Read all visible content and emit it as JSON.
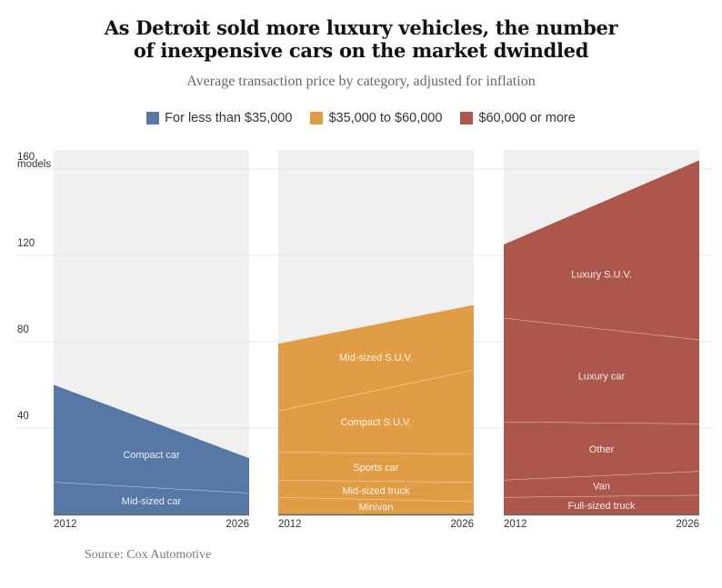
{
  "title_line1": "As Detroit sold more luxury vehicles, the number",
  "title_line2": "of inexpensive cars on the market dwindled",
  "subtitle": "Average transaction price by category, adjusted for inflation",
  "source": "Source: Cox Automotive",
  "legend": [
    {
      "label": "For less than $35,000",
      "color": "#5778a4"
    },
    {
      "label": "$35,000 to $60,000",
      "color": "#e09d45"
    },
    {
      "label": "$60,000 or more",
      "color": "#ad574c"
    }
  ],
  "chart_data": {
    "type": "area",
    "title": "As Detroit sold more luxury vehicles, the number of inexpensive cars on the market dwindled",
    "subtitle": "Average transaction price by category, adjusted for inflation",
    "ylabel": "models",
    "ylim": [
      0,
      170
    ],
    "yticks": [
      40,
      80,
      120,
      160
    ],
    "ytick_labels": [
      "40",
      "80",
      "120",
      "160"
    ],
    "y_unit_label": "models",
    "grid": true,
    "legend_position": "top-center",
    "x": [
      2012,
      2026
    ],
    "x_tick_labels": [
      "2012",
      "2026"
    ],
    "stacked": true,
    "panels": [
      {
        "name": "For less than $35,000",
        "color": "#5778a4",
        "series": [
          {
            "name": "Mid-sized car",
            "values": [
              15,
              10
            ]
          },
          {
            "name": "Compact car",
            "values": [
              45,
              16
            ]
          }
        ],
        "totals": [
          60,
          26
        ]
      },
      {
        "name": "$35,000 to $60,000",
        "color": "#e09d45",
        "series": [
          {
            "name": "Minivan",
            "values": [
              8,
              6
            ]
          },
          {
            "name": "Mid-sized truck",
            "values": [
              8,
              9
            ]
          },
          {
            "name": "Sports car",
            "values": [
              13,
              13
            ]
          },
          {
            "name": "Compact S.U.V.",
            "values": [
              19,
              39
            ]
          },
          {
            "name": "Mid-sized S.U.V.",
            "values": [
              31,
              30
            ]
          }
        ],
        "totals": [
          79,
          97
        ]
      },
      {
        "name": "$60,000 or more",
        "color": "#ad574c",
        "series": [
          {
            "name": "Full-sized truck",
            "values": [
              8,
              9
            ]
          },
          {
            "name": "Van",
            "values": [
              8,
              11
            ]
          },
          {
            "name": "Other",
            "values": [
              27,
              22
            ]
          },
          {
            "name": "Luxury car",
            "values": [
              48,
              39
            ]
          },
          {
            "name": "Luxury S.U.V.",
            "values": [
              34,
              83
            ]
          }
        ],
        "totals": [
          125,
          164
        ]
      }
    ]
  }
}
